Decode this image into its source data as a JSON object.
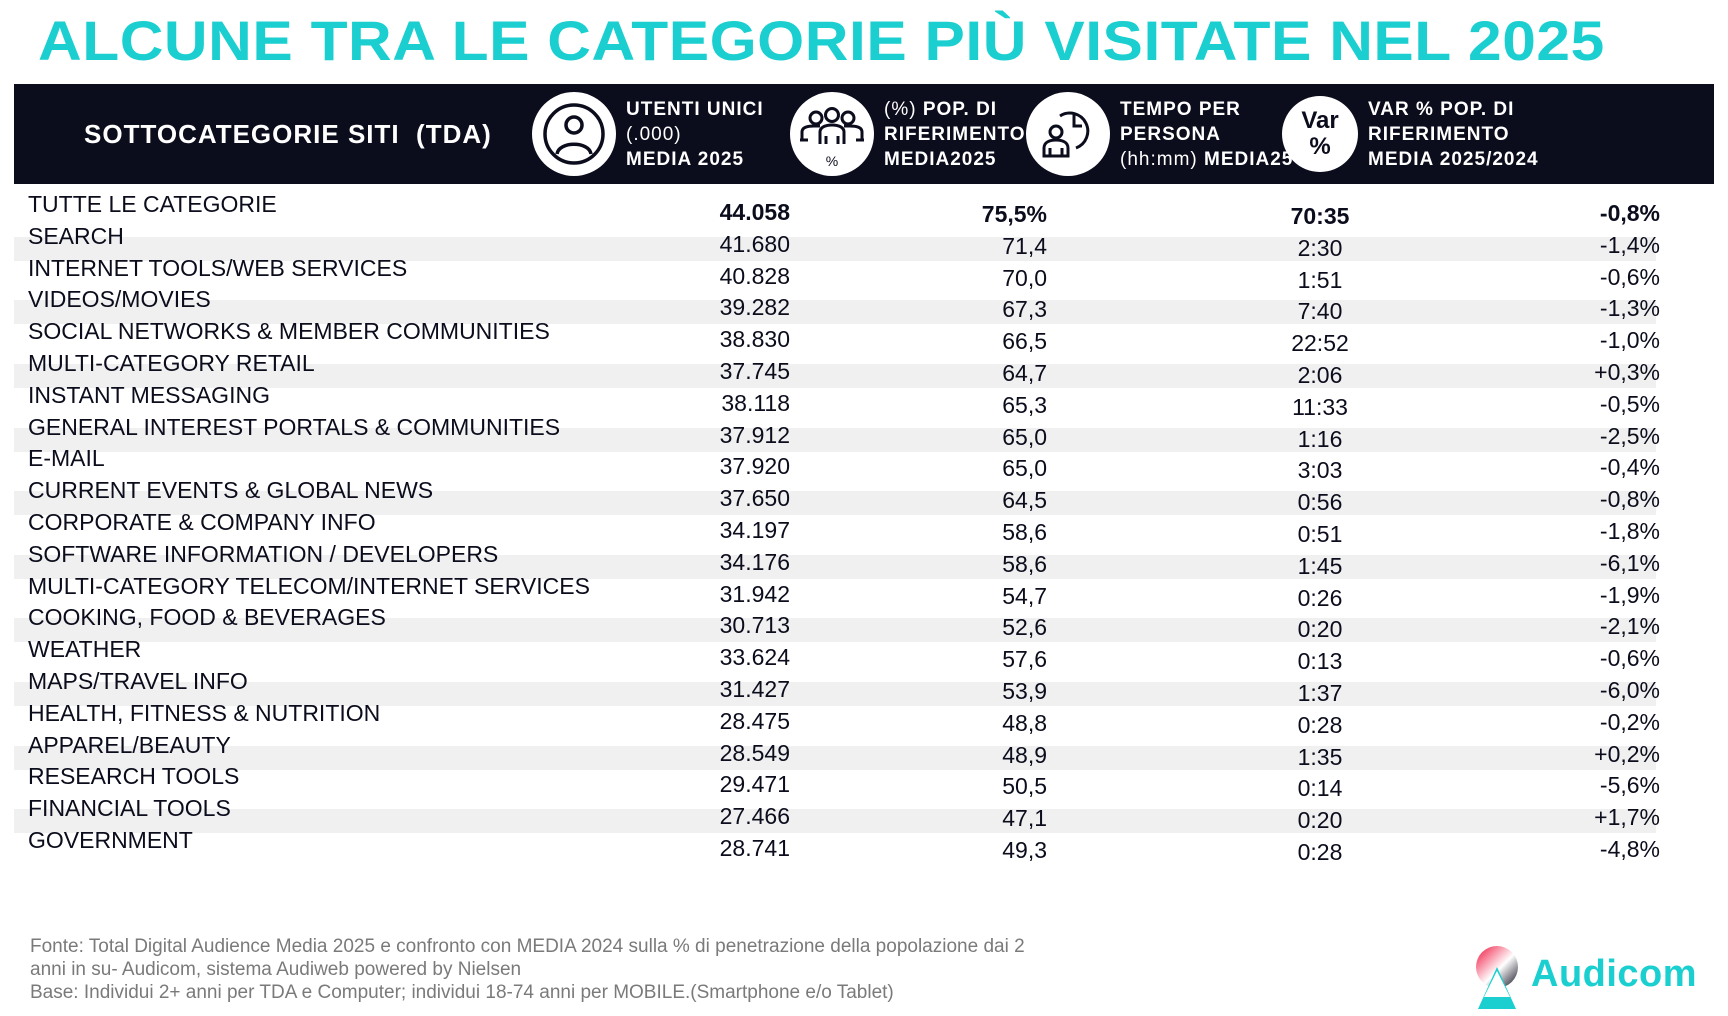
{
  "title": "ALCUNE TRA LE CATEGORIE PIÙ VISITATE NEL 2025",
  "header": {
    "first_col": "SOTTOCATEGORIE SITI  (TDA)",
    "columns": [
      {
        "icon": "user-circle-icon",
        "line1": "UTENTI UNICI",
        "line2": "(.000)",
        "line3": "MEDIA 2025"
      },
      {
        "icon": "group-percent-icon",
        "line1_prefix": "(%)",
        "line1": " POP. DI",
        "line2": "RIFERIMENTO",
        "line3": "MEDIA2025",
        "icon_label": "%"
      },
      {
        "icon": "person-clock-icon",
        "line1": "TEMPO PER",
        "line2": "PERSONA",
        "line3_prefix": "(hh:mm)",
        "line3": " MEDIA25"
      },
      {
        "icon": "var-percent-icon",
        "icon_line1": "Var",
        "icon_line2": "%",
        "line1": "VAR % POP. DI",
        "line2": "RIFERIMENTO",
        "line3": "MEDIA 2025/2024"
      }
    ]
  },
  "rows": [
    {
      "label": "TUTTE LE CATEGORIE",
      "users": "44.058",
      "pop": "75,5%",
      "time": "70:35",
      "var": "-0,8%"
    },
    {
      "label": "SEARCH",
      "users": "41.680",
      "pop": "71,4",
      "time": "2:30",
      "var": "-1,4%"
    },
    {
      "label": "INTERNET TOOLS/WEB SERVICES",
      "users": "40.828",
      "pop": "70,0",
      "time": "1:51",
      "var": "-0,6%"
    },
    {
      "label": "VIDEOS/MOVIES",
      "users": "39.282",
      "pop": "67,3",
      "time": "7:40",
      "var": "-1,3%"
    },
    {
      "label": "SOCIAL NETWORKS & MEMBER COMMUNITIES",
      "users": "38.830",
      "pop": "66,5",
      "time": "22:52",
      "var": "-1,0%"
    },
    {
      "label": "MULTI-CATEGORY RETAIL",
      "users": "37.745",
      "pop": "64,7",
      "time": "2:06",
      "var": "+0,3%"
    },
    {
      "label": "INSTANT MESSAGING",
      "users": "38.118",
      "pop": "65,3",
      "time": "11:33",
      "var": "-0,5%"
    },
    {
      "label": "GENERAL INTEREST PORTALS & COMMUNITIES",
      "users": "37.912",
      "pop": "65,0",
      "time": "1:16",
      "var": "-2,5%"
    },
    {
      "label": "E-MAIL",
      "users": "37.920",
      "pop": "65,0",
      "time": "3:03",
      "var": "-0,4%"
    },
    {
      "label": "CURRENT EVENTS & GLOBAL NEWS",
      "users": "37.650",
      "pop": "64,5",
      "time": "0:56",
      "var": "-0,8%"
    },
    {
      "label": "CORPORATE & COMPANY INFO",
      "users": "34.197",
      "pop": "58,6",
      "time": "0:51",
      "var": "-1,8%"
    },
    {
      "label": "SOFTWARE INFORMATION / DEVELOPERS",
      "users": "34.176",
      "pop": "58,6",
      "time": "1:45",
      "var": "-6,1%"
    },
    {
      "label": "MULTI-CATEGORY TELECOM/INTERNET SERVICES",
      "users": "31.942",
      "pop": "54,7",
      "time": "0:26",
      "var": "-1,9%"
    },
    {
      "label": "COOKING, FOOD & BEVERAGES",
      "users": "30.713",
      "pop": "52,6",
      "time": "0:20",
      "var": "-2,1%"
    },
    {
      "label": "WEATHER",
      "users": "33.624",
      "pop": "57,6",
      "time": "0:13",
      "var": "-0,6%"
    },
    {
      "label": "MAPS/TRAVEL INFO",
      "users": "31.427",
      "pop": "53,9",
      "time": "1:37",
      "var": "-6,0%"
    },
    {
      "label": "HEALTH, FITNESS & NUTRITION",
      "users": "28.475",
      "pop": "48,8",
      "time": "0:28",
      "var": "-0,2%"
    },
    {
      "label": "APPAREL/BEAUTY",
      "users": "28.549",
      "pop": "48,9",
      "time": "1:35",
      "var": "+0,2%"
    },
    {
      "label": "RESEARCH TOOLS",
      "users": "29.471",
      "pop": "50,5",
      "time": "0:14",
      "var": "-5,6%"
    },
    {
      "label": "FINANCIAL TOOLS",
      "users": "27.466",
      "pop": "47,1",
      "time": "0:20",
      "var": "+1,7%"
    },
    {
      "label": "GOVERNMENT",
      "users": "28.741",
      "pop": "49,3",
      "time": "0:28",
      "var": "-4,8%"
    }
  ],
  "footer": {
    "line1": "Fonte: Total Digital Audience Media 2025 e confronto con MEDIA 2024 sulla % di penetrazione della popolazione dai 2",
    "line2": "anni in su- Audicom, sistema Audiweb powered by Nielsen",
    "line3": "Base:  Individui 2+ anni per TDA e Computer; individui 18-74 anni per MOBILE.(Smartphone e/o Tablet)"
  },
  "logo": {
    "text": "Audicom"
  },
  "colors": {
    "accent": "#1bcfd1",
    "header_bg": "#0b0c1c",
    "band": "#f0f0f0",
    "footer_text": "#7a7a7a"
  }
}
